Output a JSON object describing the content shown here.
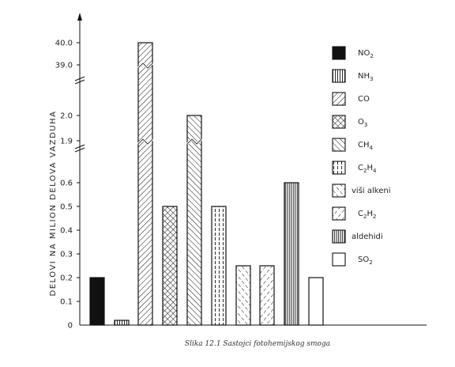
{
  "chart_data": {
    "type": "bar",
    "caption": "Slika 12.1  Sastojci fotohemijskog smoga",
    "ylabel": "DELOVI  NA  MILION  DELOVA  VAZDUHA",
    "y_scale": "broken",
    "y_segments": [
      [
        0,
        0.6
      ],
      [
        1.9,
        2.0
      ],
      [
        39.0,
        40.0
      ]
    ],
    "y_ticks": [
      "0",
      "0.1",
      "0.2",
      "0.3",
      "0.4",
      "0.5",
      "0.6",
      "1.9",
      "2.0",
      "39.0",
      "40.0"
    ],
    "legend_position": "right",
    "grid": false,
    "categories": [
      {
        "label": "NO",
        "sub": "2",
        "value": 0.2,
        "pattern": "solid"
      },
      {
        "label": "NH",
        "sub": "3",
        "value": 0.02,
        "pattern": "vertical"
      },
      {
        "label": "CO",
        "sub": "",
        "value": 40.0,
        "pattern": "diag-down"
      },
      {
        "label": "O",
        "sub": "3",
        "value": 0.5,
        "pattern": "crosshatch"
      },
      {
        "label": "CH",
        "sub": "4",
        "value": 2.0,
        "pattern": "diag-up"
      },
      {
        "label": "C",
        "sub": "2",
        "label2": "H",
        "sub2": "4",
        "value": 0.5,
        "pattern": "vert-dashed"
      },
      {
        "label": "viši alkeni",
        "sub": "",
        "value": 0.25,
        "pattern": "diag-up-dashed"
      },
      {
        "label": "C",
        "sub": "2",
        "label2": "H",
        "sub2": "2",
        "value": 0.25,
        "pattern": "diag-down-dashed"
      },
      {
        "label": "aldehidi",
        "sub": "",
        "value": 0.6,
        "pattern": "vertical-dense"
      },
      {
        "label": "SO",
        "sub": "2",
        "value": 0.2,
        "pattern": "none"
      }
    ]
  }
}
